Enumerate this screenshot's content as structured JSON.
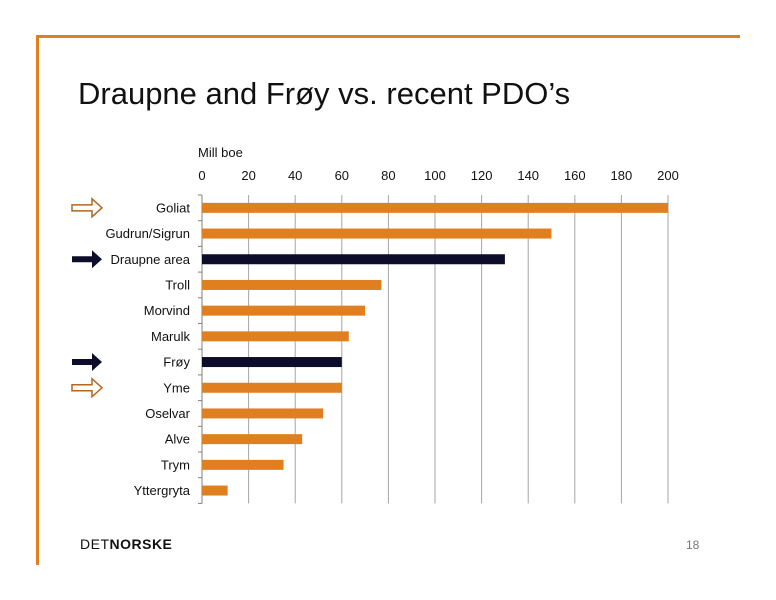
{
  "slide": {
    "title": "Draupne and Frøy vs. recent PDO’s",
    "page_number": "18",
    "logo_light": "DET",
    "logo_bold": "NORSKE"
  },
  "colors": {
    "accent": "#e07f1f",
    "highlight": "#0d0d2b",
    "frame": "#e07f1f",
    "hollow_arrow": "#b5651d"
  },
  "chart_data": {
    "type": "bar",
    "orientation": "horizontal",
    "title": "",
    "xlabel": "Mill boe",
    "ylabel": "",
    "xlim": [
      0,
      200
    ],
    "x_ticks": [
      0,
      20,
      40,
      60,
      80,
      100,
      120,
      140,
      160,
      180,
      200
    ],
    "x_axis_position": "top",
    "grid": true,
    "legend": "none",
    "categories": [
      "Goliat",
      "Gudrun/Sigrun",
      "Draupne area",
      "Troll",
      "Morvind",
      "Marulk",
      "Frøy",
      "Yme",
      "Oselvar",
      "Alve",
      "Trym",
      "Yttergryta"
    ],
    "values": [
      200,
      150,
      130,
      77,
      70,
      63,
      60,
      60,
      52,
      43,
      35,
      11
    ],
    "highlighted": [
      "Draupne area",
      "Frøy"
    ],
    "arrows": [
      {
        "category": "Goliat",
        "style": "hollow-arrow-icon"
      },
      {
        "category": "Draupne area",
        "style": "solid-arrow-icon"
      },
      {
        "category": "Frøy",
        "style": "solid-arrow-icon"
      },
      {
        "category": "Yme",
        "style": "hollow-arrow-icon"
      }
    ]
  }
}
